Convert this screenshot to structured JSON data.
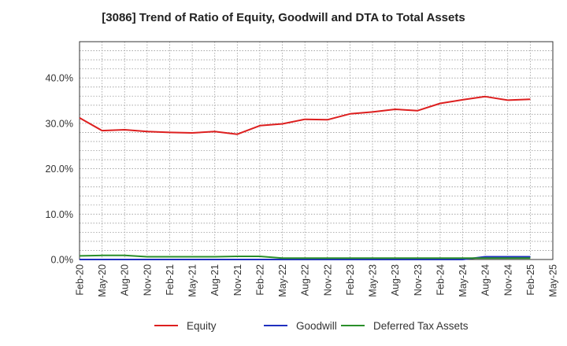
{
  "chart_data": {
    "type": "line",
    "title": "[3086]  Trend of Ratio of Equity, Goodwill and DTA to Total Assets",
    "xlabel": "",
    "ylabel": "",
    "ylim": [
      0,
      48
    ],
    "y_ticks": [
      0,
      10,
      20,
      30,
      40
    ],
    "y_tick_labels": [
      "0.0%",
      "10.0%",
      "20.0%",
      "30.0%",
      "40.0%"
    ],
    "grid": true,
    "legend_position": "bottom",
    "x_tick_labels": [
      "Feb-20",
      "May-20",
      "Aug-20",
      "Nov-20",
      "Feb-21",
      "May-21",
      "Aug-21",
      "Nov-21",
      "Feb-22",
      "May-22",
      "Aug-22",
      "Nov-22",
      "Feb-23",
      "May-23",
      "Aug-23",
      "Nov-23",
      "Feb-24",
      "May-24",
      "Aug-24",
      "Nov-24",
      "Feb-25",
      "May-25"
    ],
    "x": [
      "Feb-20",
      "May-20",
      "Aug-20",
      "Nov-20",
      "Feb-21",
      "May-21",
      "Aug-21",
      "Nov-21",
      "Feb-22",
      "May-22",
      "Aug-22",
      "Nov-22",
      "Feb-23",
      "May-23",
      "Aug-23",
      "Nov-23",
      "Feb-24",
      "May-24",
      "Aug-24",
      "Nov-24",
      "Feb-25"
    ],
    "series": [
      {
        "name": "Equity",
        "color": "#dd1f1f",
        "values": [
          31.2,
          28.4,
          28.6,
          28.2,
          28.0,
          27.9,
          28.2,
          27.6,
          29.5,
          29.9,
          30.9,
          30.8,
          32.1,
          32.5,
          33.1,
          32.8,
          34.4,
          35.2,
          35.9,
          35.1,
          35.3
        ]
      },
      {
        "name": "Goodwill",
        "color": "#1f2fbf",
        "values": [
          0.0,
          0.0,
          0.0,
          0.0,
          0.0,
          0.0,
          0.0,
          0.0,
          0.0,
          0.0,
          0.0,
          0.0,
          0.0,
          0.0,
          0.0,
          0.0,
          0.0,
          0.0,
          0.6,
          0.6,
          0.6
        ]
      },
      {
        "name": "Deferred Tax Assets",
        "color": "#2a8f2a",
        "values": [
          0.8,
          0.9,
          0.9,
          0.6,
          0.6,
          0.6,
          0.6,
          0.7,
          0.7,
          0.3,
          0.3,
          0.3,
          0.3,
          0.3,
          0.3,
          0.3,
          0.3,
          0.3,
          0.3,
          0.3,
          0.3
        ]
      }
    ]
  }
}
